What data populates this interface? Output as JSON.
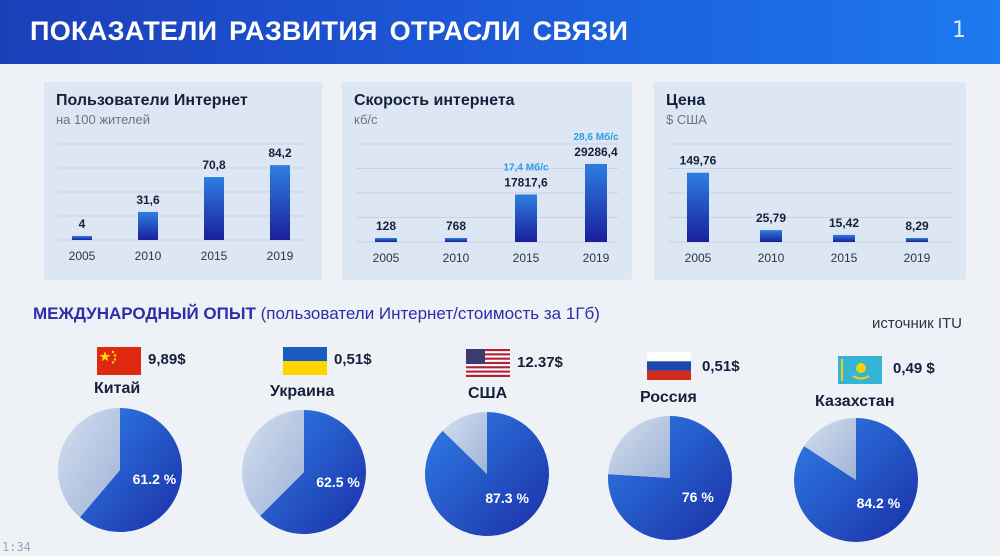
{
  "header": {
    "title": "ПОКАЗАТЕЛИ РАЗВИТИЯ  ОТРАСЛИ  СВЯЗИ",
    "page": "1"
  },
  "panels": [
    {
      "title": "Пользователи Интернет",
      "subtitle": "на 100 жителей"
    },
    {
      "title": "Скорость интернета",
      "subtitle": "кб/с"
    },
    {
      "title": "Цена",
      "subtitle": "$ США"
    }
  ],
  "chart_data": [
    {
      "type": "bar",
      "title": "Пользователи Интернет",
      "subtitle": "на 100 жителей",
      "categories": [
        "2005",
        "2010",
        "2015",
        "2019"
      ],
      "values": [
        4,
        31.6,
        70.8,
        84.2
      ],
      "value_labels": [
        "4",
        "31,6",
        "70,8",
        "84,2"
      ],
      "ylim": [
        0,
        90
      ],
      "grid": true
    },
    {
      "type": "bar",
      "title": "Скорость интернета",
      "subtitle": "кб/с",
      "categories": [
        "2005",
        "2010",
        "2015",
        "2019"
      ],
      "values": [
        128,
        768,
        17817.6,
        29286.4
      ],
      "value_labels": [
        "128",
        "768",
        "17817,6",
        "29286,4"
      ],
      "annotations": [
        "",
        "",
        "17,4 Мб/с",
        "28,6 Мб/с"
      ],
      "ylim": [
        0,
        30000
      ],
      "grid": true
    },
    {
      "type": "bar",
      "title": "Цена",
      "subtitle": "$ США",
      "categories": [
        "2005",
        "2010",
        "2015",
        "2019"
      ],
      "values": [
        149.76,
        25.79,
        15.42,
        8.29
      ],
      "value_labels": [
        "149,76",
        "25,79",
        "15,42",
        "8,29"
      ],
      "ylim": [
        0,
        160
      ],
      "grid": true
    },
    {
      "type": "pie",
      "title": "МЕЖДУНАРОДНЫЙ ОПЫТ",
      "subtitle": "(пользователи Интернет/стоимость за 1Гб)",
      "source": "источник ITU",
      "series": [
        {
          "name": "Китай",
          "price": "9,89$",
          "value": 61.2,
          "label": "61.2 %"
        },
        {
          "name": "Украина",
          "price": "0,51$",
          "value": 62.5,
          "label": "62.5 %"
        },
        {
          "name": "США",
          "price": "12.37$",
          "value": 87.3,
          "label": "87.3 %"
        },
        {
          "name": "Россия",
          "price": "0,51$",
          "value": 76,
          "label": "76  %"
        },
        {
          "name": "Казахстан",
          "price": "0,49 $",
          "value": 84.2,
          "label": "84.2 %"
        }
      ]
    }
  ],
  "section": {
    "title_bold": "МЕЖДУНАРОДНЫЙ ОПЫТ",
    "title_normal": "(пользователи Интернет/стоимость за 1Гб)",
    "source": "источник ITU"
  },
  "countries": [
    {
      "name": "Китай",
      "price": "9,89$",
      "flag": "china-flag-icon"
    },
    {
      "name": "Украина",
      "price": "0,51$",
      "flag": "ukraine-flag-icon"
    },
    {
      "name": "США",
      "price": "12.37$",
      "flag": "usa-flag-icon"
    },
    {
      "name": "Россия",
      "price": "0,51$",
      "flag": "russia-flag-icon"
    },
    {
      "name": "Казахстан",
      "price": "0,49 $",
      "flag": "kazakhstan-flag-icon"
    }
  ],
  "colors": {
    "bar_top": "#2e7ee0",
    "bar_bottom": "#1a1f9e",
    "pie_main": "#2a5fd4",
    "pie_rest": "#b8c8e4",
    "header": "#1c57d6",
    "annotation": "#2a9be6"
  },
  "timestamp": "1:34"
}
